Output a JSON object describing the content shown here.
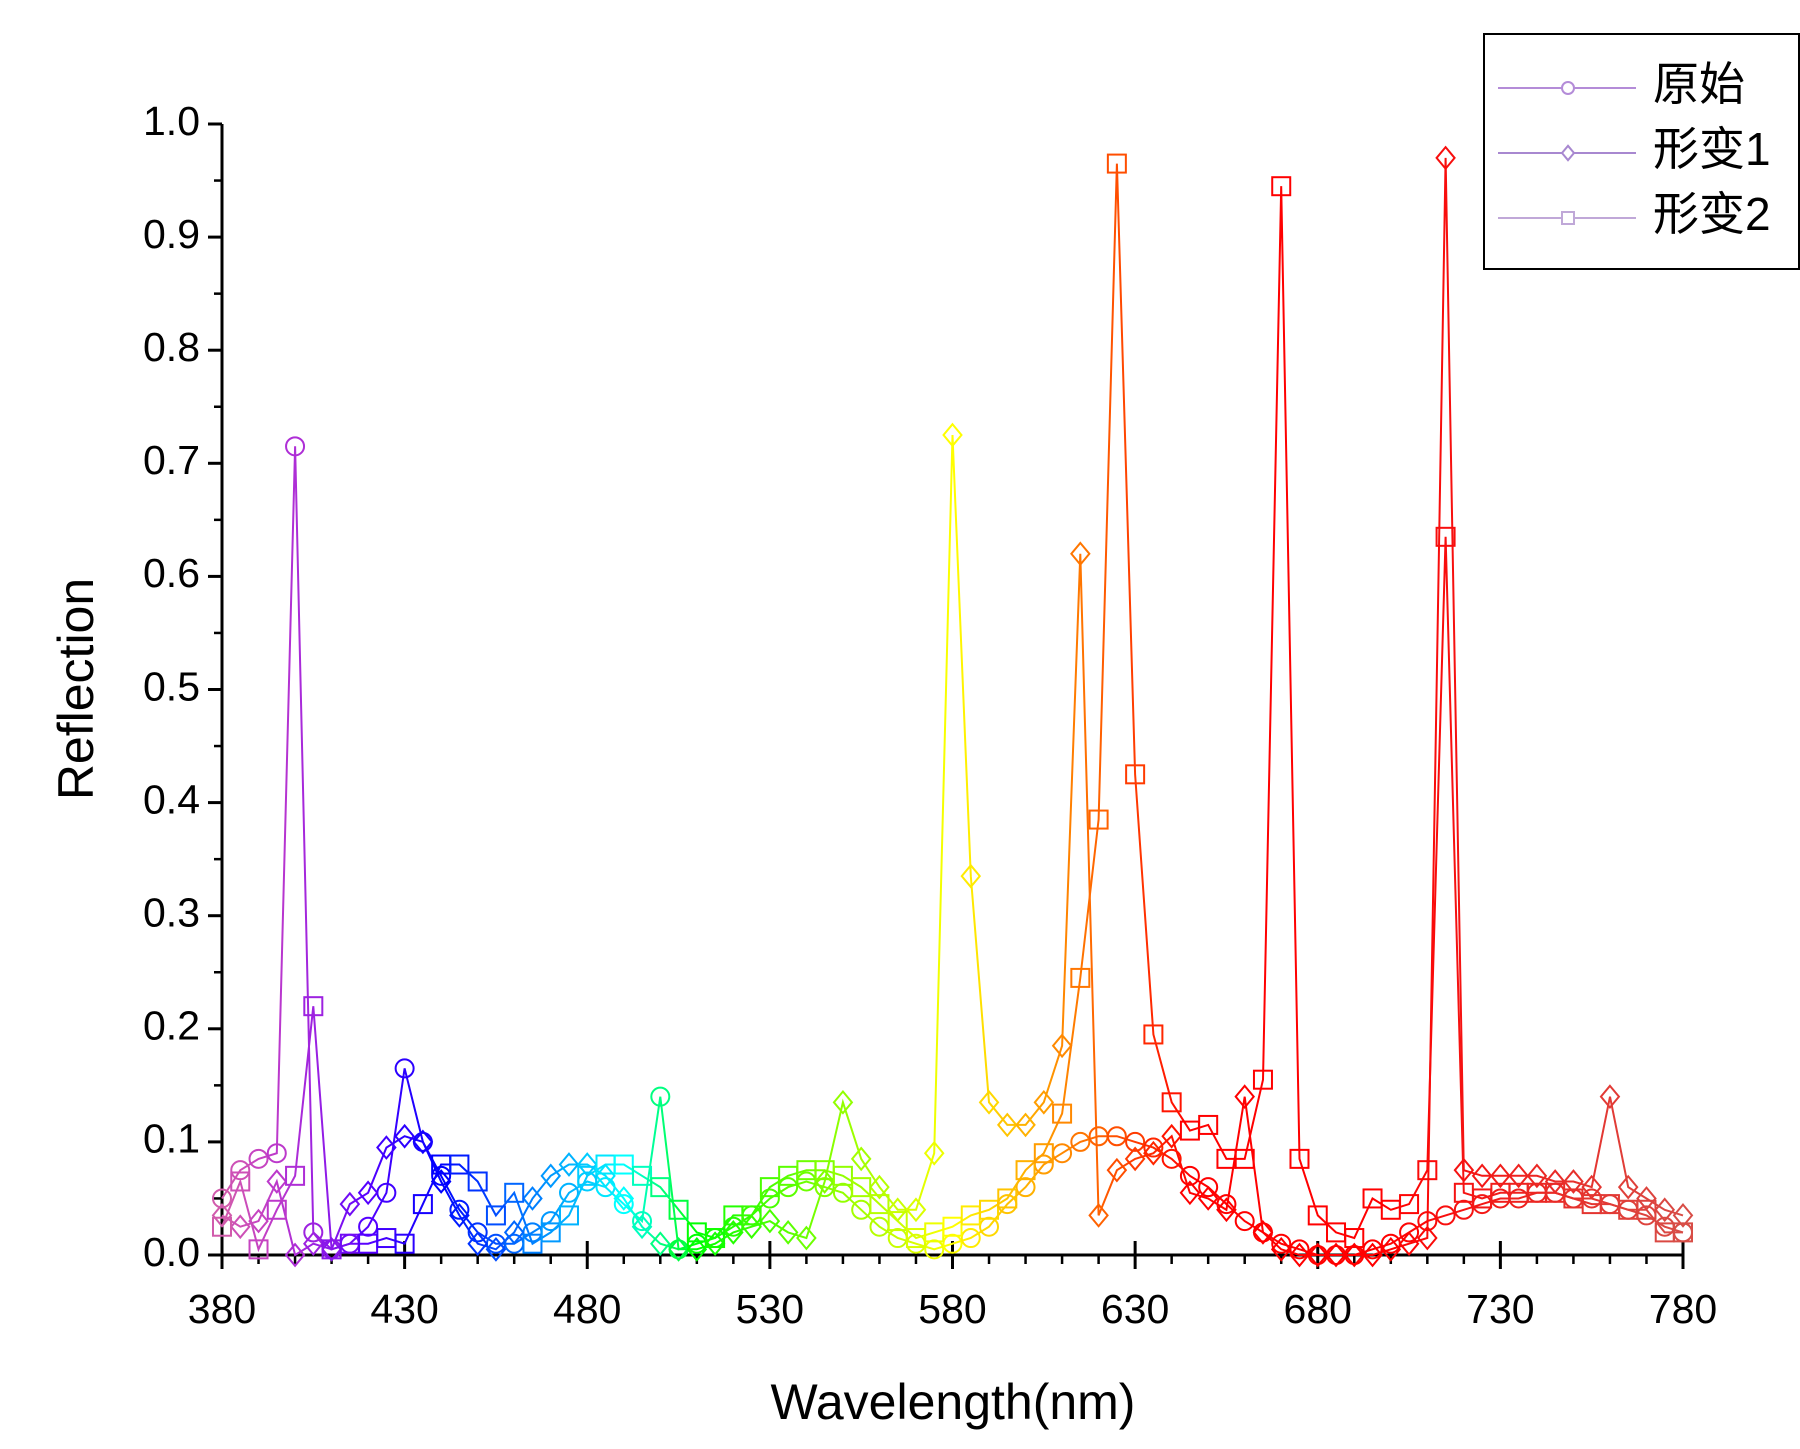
{
  "chart_data": {
    "type": "line",
    "x_label": "Wavelength(nm)",
    "y_label": "Reflection",
    "xlim": [
      380,
      780
    ],
    "ylim": [
      0,
      1
    ],
    "xticks": [
      380,
      430,
      480,
      530,
      580,
      630,
      680,
      730,
      780
    ],
    "yticks": [
      {
        "value": 0,
        "label": "0.0"
      },
      0.1,
      0.2,
      0.3,
      0.4,
      0.5,
      0.6,
      0.7,
      0.8,
      0.9,
      {
        "value": 1,
        "label": "1.0"
      }
    ],
    "x_minor_ticks": [
      390,
      400,
      410,
      420,
      440,
      450,
      460,
      470,
      490,
      500,
      510,
      520,
      540,
      550,
      560,
      570,
      590,
      600,
      610,
      620,
      640,
      650,
      660,
      670,
      690,
      700,
      710,
      720,
      740,
      750,
      760,
      770
    ],
    "y_minor_ticks": [
      0.05,
      0.15,
      0.25,
      0.35,
      0.45,
      0.55,
      0.65,
      0.75,
      0.85,
      0.95
    ],
    "point_colormap": "spectrum",
    "legend": "top-right",
    "x": [
      380,
      385,
      390,
      395,
      400,
      405,
      410,
      415,
      420,
      425,
      430,
      435,
      440,
      445,
      450,
      455,
      460,
      465,
      470,
      475,
      480,
      485,
      490,
      495,
      500,
      505,
      510,
      515,
      520,
      525,
      530,
      535,
      540,
      545,
      550,
      555,
      560,
      565,
      570,
      575,
      580,
      585,
      590,
      595,
      600,
      605,
      610,
      615,
      620,
      625,
      630,
      635,
      640,
      645,
      650,
      655,
      660,
      665,
      670,
      675,
      680,
      685,
      690,
      695,
      700,
      705,
      710,
      715,
      720,
      725,
      730,
      735,
      740,
      745,
      750,
      755,
      760,
      765,
      770,
      775,
      780
    ],
    "series": [
      {
        "name": "原始",
        "color": "#b48cd8",
        "marker": "circle",
        "values": [
          0.05,
          0.075,
          0.085,
          0.09,
          0.715,
          0.02,
          0.005,
          0.01,
          0.025,
          0.055,
          0.165,
          0.1,
          0.07,
          0.04,
          0.02,
          0.01,
          0.01,
          0.02,
          0.03,
          0.055,
          0.065,
          0.06,
          0.045,
          0.03,
          0.14,
          0.005,
          0.01,
          0.015,
          0.025,
          0.035,
          0.05,
          0.06,
          0.065,
          0.06,
          0.055,
          0.04,
          0.025,
          0.015,
          0.01,
          0.005,
          0.01,
          0.015,
          0.025,
          0.045,
          0.06,
          0.08,
          0.09,
          0.1,
          0.105,
          0.105,
          0.1,
          0.095,
          0.085,
          0.07,
          0.06,
          0.045,
          0.03,
          0.02,
          0.01,
          0.005,
          0,
          0,
          0,
          0.005,
          0.01,
          0.02,
          0.03,
          0.035,
          0.04,
          0.045,
          0.05,
          0.05,
          0.055,
          0.055,
          0.05,
          0.05,
          0.045,
          0.04,
          0.035,
          0.025,
          0.02
        ]
      },
      {
        "name": "形变1",
        "color": "#a888d0",
        "marker": "diamond",
        "values": [
          0.035,
          0.025,
          0.03,
          0.065,
          0,
          0.01,
          0.005,
          0.045,
          0.055,
          0.095,
          0.105,
          0.1,
          0.065,
          0.035,
          0.01,
          0.005,
          0.02,
          0.05,
          0.07,
          0.08,
          0.08,
          0.07,
          0.05,
          0.025,
          0.01,
          0.005,
          0.005,
          0.01,
          0.02,
          0.025,
          0.03,
          0.02,
          0.015,
          0.065,
          0.135,
          0.085,
          0.06,
          0.04,
          0.04,
          0.09,
          0.725,
          0.335,
          0.135,
          0.115,
          0.115,
          0.135,
          0.185,
          0.62,
          0.035,
          0.075,
          0.085,
          0.09,
          0.105,
          0.055,
          0.05,
          0.04,
          0.14,
          0.02,
          0.005,
          0,
          0,
          0,
          0,
          0,
          0.005,
          0.01,
          0.015,
          0.97,
          0.075,
          0.07,
          0.07,
          0.07,
          0.07,
          0.065,
          0.065,
          0.06,
          0.14,
          0.06,
          0.05,
          0.04,
          0.035
        ]
      },
      {
        "name": "形变2",
        "color": "#c0a8d8",
        "marker": "square",
        "values": [
          0.025,
          0.065,
          0.005,
          0.04,
          0.07,
          0.22,
          0.005,
          0.01,
          0.01,
          0.015,
          0.01,
          0.045,
          0.08,
          0.08,
          0.065,
          0.035,
          0.055,
          0.01,
          0.02,
          0.035,
          0.07,
          0.08,
          0.08,
          0.07,
          0.06,
          0.04,
          0.02,
          0.015,
          0.035,
          0.035,
          0.06,
          0.07,
          0.075,
          0.075,
          0.07,
          0.06,
          0.045,
          0.03,
          0.015,
          0.02,
          0.025,
          0.035,
          0.04,
          0.05,
          0.075,
          0.09,
          0.125,
          0.245,
          0.385,
          0.965,
          0.425,
          0.195,
          0.135,
          0.11,
          0.115,
          0.085,
          0.085,
          0.155,
          0.945,
          0.085,
          0.035,
          0.02,
          0.015,
          0.05,
          0.04,
          0.045,
          0.075,
          0.635,
          0.055,
          0.05,
          0.055,
          0.055,
          0.055,
          0.055,
          0.05,
          0.045,
          0.045,
          0.04,
          0.04,
          0.02,
          0.02
        ]
      }
    ]
  }
}
